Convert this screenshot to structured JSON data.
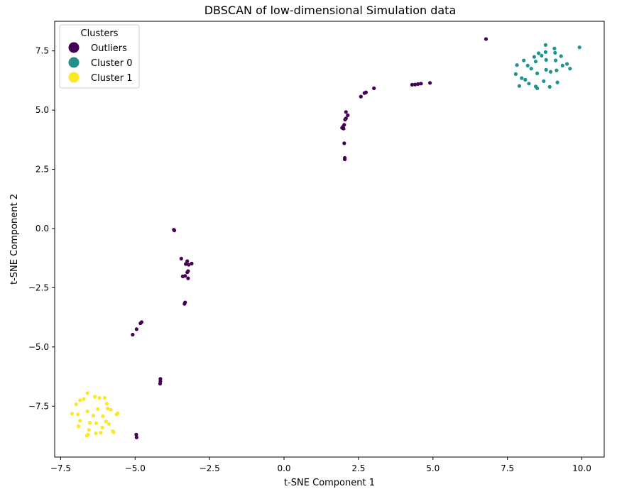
{
  "chart_data": {
    "type": "scatter",
    "title": "DBSCAN of low-dimensional Simulation data",
    "xlabel": "t-SNE Component 1",
    "ylabel": "t-SNE Component 2",
    "xlim": [
      -7.7,
      10.75
    ],
    "ylim": [
      -9.65,
      8.75
    ],
    "xticks": [
      -7.5,
      -5.0,
      -2.5,
      0.0,
      2.5,
      5.0,
      7.5,
      10.0
    ],
    "xtick_labels": [
      "−7.5",
      "−5.0",
      "−2.5",
      "0.0",
      "2.5",
      "5.0",
      "7.5",
      "10.0"
    ],
    "yticks": [
      -7.5,
      -5.0,
      -2.5,
      0.0,
      2.5,
      5.0,
      7.5
    ],
    "ytick_labels": [
      "−7.5",
      "−5.0",
      "−2.5",
      "0.0",
      "2.5",
      "5.0",
      "7.5"
    ],
    "grid": false,
    "legend": {
      "title": "Clusters",
      "position": "top-left",
      "entries": [
        "Outliers",
        "Cluster 0",
        "Cluster 1"
      ]
    },
    "series": [
      {
        "name": "Outliers",
        "color": "#440154",
        "points": [
          [
            6.78,
            8.0
          ],
          [
            4.9,
            6.15
          ],
          [
            4.6,
            6.12
          ],
          [
            4.5,
            6.1
          ],
          [
            4.4,
            6.08
          ],
          [
            4.3,
            6.07
          ],
          [
            3.02,
            5.92
          ],
          [
            2.75,
            5.75
          ],
          [
            2.7,
            5.72
          ],
          [
            2.58,
            5.57
          ],
          [
            2.08,
            4.92
          ],
          [
            2.14,
            4.78
          ],
          [
            2.08,
            4.65
          ],
          [
            2.05,
            4.6
          ],
          [
            2.02,
            4.38
          ],
          [
            1.98,
            4.3
          ],
          [
            1.95,
            4.25
          ],
          [
            2.0,
            4.22
          ],
          [
            2.02,
            3.6
          ],
          [
            2.04,
            2.98
          ],
          [
            2.04,
            2.92
          ],
          [
            -3.7,
            -0.05
          ],
          [
            -3.68,
            -0.08
          ],
          [
            -3.45,
            -1.27
          ],
          [
            -3.25,
            -1.38
          ],
          [
            -3.1,
            -1.48
          ],
          [
            -3.3,
            -1.5
          ],
          [
            -3.2,
            -1.53
          ],
          [
            -3.22,
            -1.8
          ],
          [
            -3.25,
            -1.85
          ],
          [
            -3.4,
            -2.02
          ],
          [
            -3.32,
            -2.0
          ],
          [
            -3.22,
            -2.1
          ],
          [
            -3.32,
            -3.12
          ],
          [
            -3.34,
            -3.18
          ],
          [
            -4.78,
            -3.95
          ],
          [
            -4.82,
            -4.0
          ],
          [
            -4.95,
            -4.25
          ],
          [
            -5.08,
            -4.48
          ],
          [
            -4.15,
            -6.35
          ],
          [
            -4.15,
            -6.45
          ],
          [
            -4.16,
            -6.55
          ],
          [
            -4.96,
            -8.7
          ],
          [
            -4.95,
            -8.82
          ]
        ]
      },
      {
        "name": "Cluster 0",
        "color": "#21918c",
        "points": [
          [
            9.92,
            7.65
          ],
          [
            8.78,
            7.75
          ],
          [
            9.08,
            7.6
          ],
          [
            8.55,
            7.4
          ],
          [
            8.78,
            7.45
          ],
          [
            9.1,
            7.42
          ],
          [
            8.4,
            7.25
          ],
          [
            8.65,
            7.3
          ],
          [
            9.3,
            7.28
          ],
          [
            8.05,
            7.1
          ],
          [
            8.45,
            7.05
          ],
          [
            8.8,
            7.12
          ],
          [
            9.12,
            7.1
          ],
          [
            7.82,
            6.9
          ],
          [
            8.18,
            6.88
          ],
          [
            9.5,
            6.95
          ],
          [
            9.35,
            6.88
          ],
          [
            8.3,
            6.75
          ],
          [
            8.8,
            6.7
          ],
          [
            9.15,
            6.68
          ],
          [
            9.6,
            6.75
          ],
          [
            8.95,
            6.62
          ],
          [
            7.78,
            6.52
          ],
          [
            8.5,
            6.55
          ],
          [
            7.98,
            6.35
          ],
          [
            8.1,
            6.28
          ],
          [
            8.72,
            6.22
          ],
          [
            9.18,
            6.17
          ],
          [
            8.22,
            6.12
          ],
          [
            7.9,
            6.02
          ],
          [
            8.45,
            6.0
          ],
          [
            8.92,
            5.98
          ],
          [
            8.5,
            5.92
          ]
        ]
      },
      {
        "name": "Cluster 1",
        "color": "#fde725",
        "points": [
          [
            -6.6,
            -6.95
          ],
          [
            -6.35,
            -7.1
          ],
          [
            -6.2,
            -7.15
          ],
          [
            -6.02,
            -7.15
          ],
          [
            -6.72,
            -7.2
          ],
          [
            -6.85,
            -7.25
          ],
          [
            -6.98,
            -7.42
          ],
          [
            -5.95,
            -7.4
          ],
          [
            -6.25,
            -7.62
          ],
          [
            -5.92,
            -7.6
          ],
          [
            -5.82,
            -7.65
          ],
          [
            -6.6,
            -7.72
          ],
          [
            -5.58,
            -7.8
          ],
          [
            -7.12,
            -7.82
          ],
          [
            -6.92,
            -7.85
          ],
          [
            -5.62,
            -7.85
          ],
          [
            -6.4,
            -7.9
          ],
          [
            -6.08,
            -7.92
          ],
          [
            -6.85,
            -8.12
          ],
          [
            -5.98,
            -8.15
          ],
          [
            -6.52,
            -8.2
          ],
          [
            -6.3,
            -8.22
          ],
          [
            -5.88,
            -8.25
          ],
          [
            -6.9,
            -8.35
          ],
          [
            -6.1,
            -8.4
          ],
          [
            -6.55,
            -8.5
          ],
          [
            -5.75,
            -8.55
          ],
          [
            -5.72,
            -8.6
          ],
          [
            -6.32,
            -8.65
          ],
          [
            -6.15,
            -8.62
          ],
          [
            -6.58,
            -8.7
          ],
          [
            -6.62,
            -8.75
          ]
        ]
      }
    ]
  }
}
